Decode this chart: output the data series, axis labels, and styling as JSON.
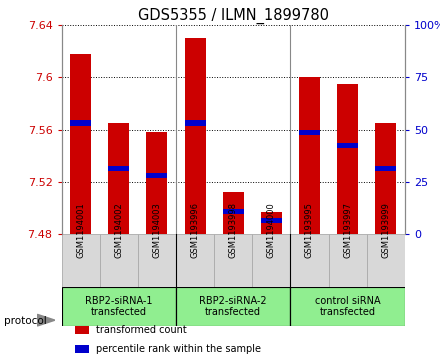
{
  "title": "GDS5355 / ILMN_1899780",
  "samples": [
    "GSM1194001",
    "GSM1194002",
    "GSM1194003",
    "GSM1193996",
    "GSM1193998",
    "GSM1194000",
    "GSM1193995",
    "GSM1193997",
    "GSM1193999"
  ],
  "transformed_counts": [
    7.618,
    7.565,
    7.558,
    7.63,
    7.512,
    7.497,
    7.6,
    7.595,
    7.565
  ],
  "percentile_ranks": [
    7.565,
    7.53,
    7.525,
    7.565,
    7.497,
    7.49,
    7.558,
    7.548,
    7.53
  ],
  "baseline": 7.48,
  "ylim": [
    7.48,
    7.64
  ],
  "yticks": [
    7.48,
    7.52,
    7.56,
    7.6,
    7.64
  ],
  "right_yticks": [
    0,
    25,
    50,
    75,
    100
  ],
  "bar_color": "#CC0000",
  "percentile_color": "#0000CC",
  "bar_width": 0.55,
  "background_color": "#ffffff",
  "plot_bg_color": "#ffffff",
  "sample_bg_color": "#d8d8d8",
  "group_bg_color": "#90EE90",
  "left_tick_color": "#CC0000",
  "right_tick_color": "#0000CC",
  "protocol_label": "protocol",
  "groups": [
    {
      "label": "RBP2-siRNA-1\ntransfected",
      "start": 0,
      "end": 2
    },
    {
      "label": "RBP2-siRNA-2\ntransfected",
      "start": 3,
      "end": 5
    },
    {
      "label": "control siRNA\ntransfected",
      "start": 6,
      "end": 8
    }
  ],
  "legend_items": [
    {
      "label": "transformed count",
      "color": "#CC0000"
    },
    {
      "label": "percentile rank within the sample",
      "color": "#0000CC"
    }
  ]
}
